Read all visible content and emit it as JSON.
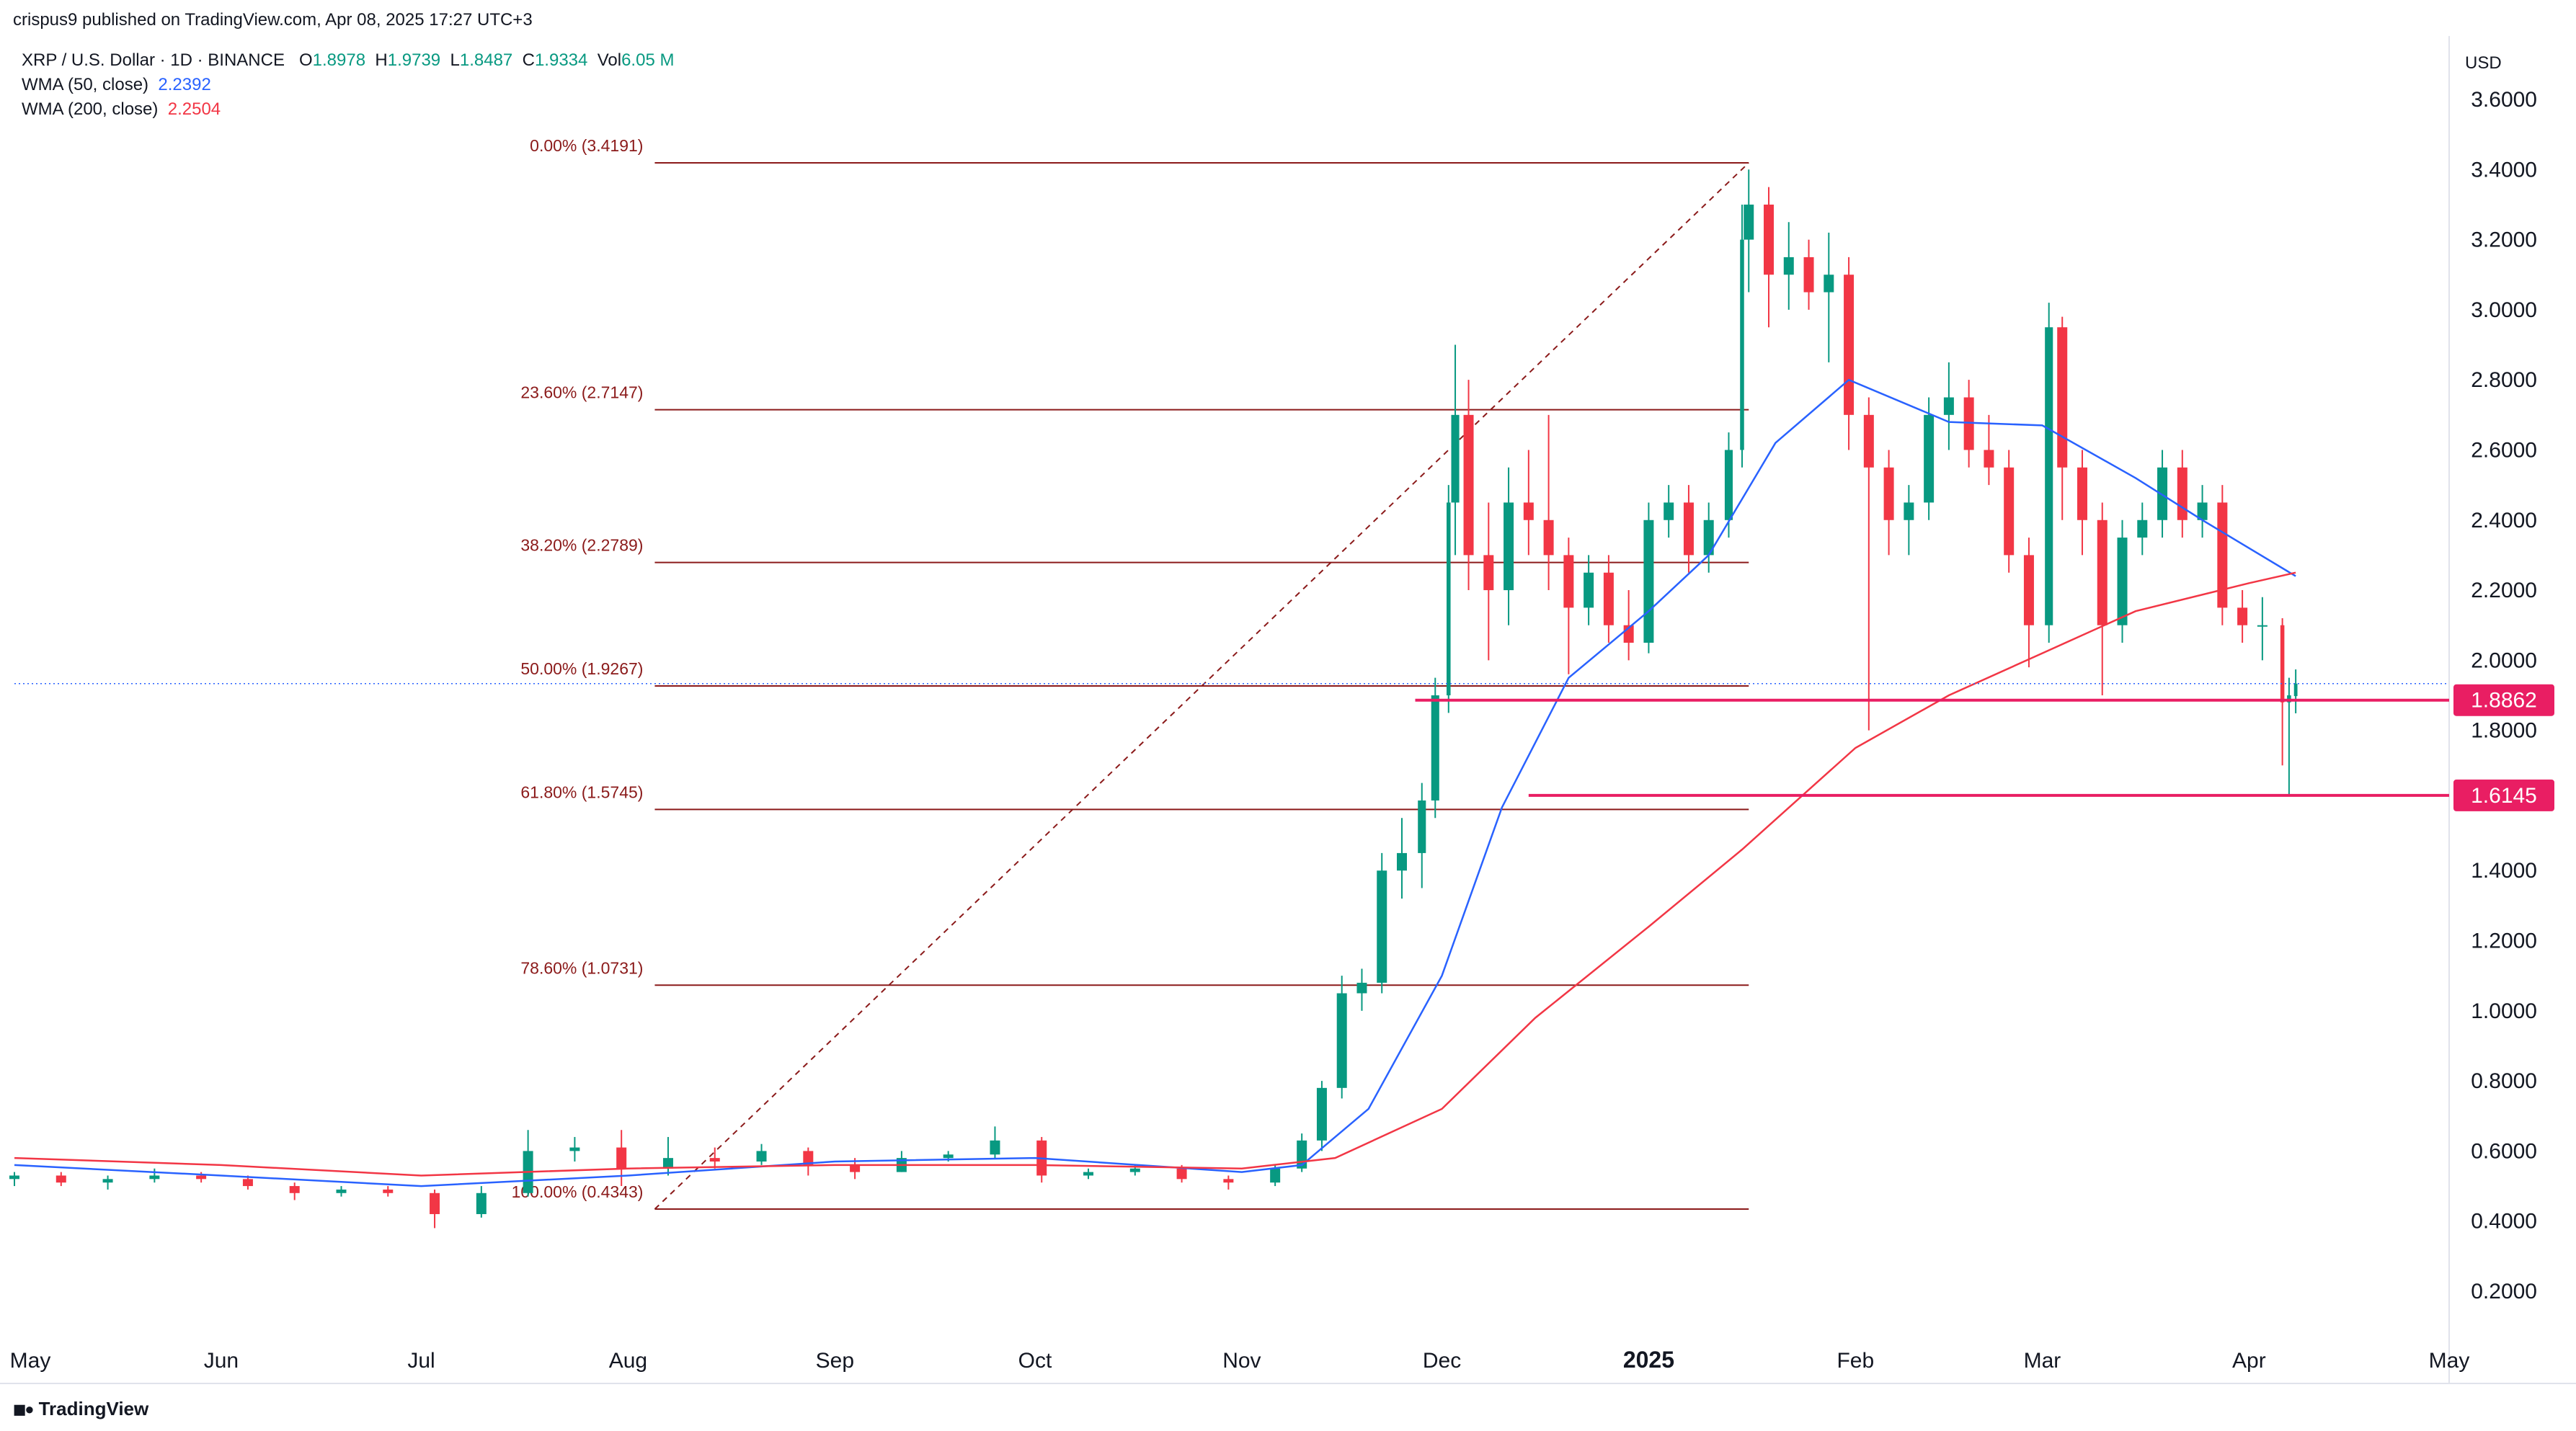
{
  "header": {
    "publisher": "crispus9 published on TradingView.com, Apr 08, 2025 17:27 UTC+3",
    "symbol": "XRP / U.S. Dollar · 1D · BINANCE",
    "ohlc": [
      {
        "key": "O",
        "value": "1.8978"
      },
      {
        "key": "H",
        "value": "1.9739"
      },
      {
        "key": "L",
        "value": "1.8487"
      },
      {
        "key": "C",
        "value": "1.9334"
      },
      {
        "key": "Vol",
        "value": "6.05 M"
      }
    ],
    "indicators": [
      {
        "label": "WMA (50, close)",
        "value": "2.2392",
        "color": "#2962ff"
      },
      {
        "label": "WMA (200, close)",
        "value": "2.2504",
        "color": "#f23645"
      }
    ]
  },
  "footer": {
    "logo_text": "TradingView",
    "logo_icon": "tradingview-logo-icon"
  },
  "colors": {
    "up": "#089981",
    "down": "#f23645",
    "wma50": "#2962ff",
    "wma200": "#f23645",
    "fib": "#8b1a1a",
    "level": "#e91e63",
    "grid": "#f0f3fa"
  },
  "chart_data": {
    "type": "candlestick",
    "y_axis_label": "USD",
    "y_ticks": [
      "3.6000",
      "3.4000",
      "3.2000",
      "3.0000",
      "2.8000",
      "2.6000",
      "2.4000",
      "2.2000",
      "2.0000",
      "1.8000",
      "1.4000",
      "1.2000",
      "1.0000",
      "0.8000",
      "0.6000",
      "0.4000",
      "0.2000"
    ],
    "ylim": [
      0.08,
      3.72
    ],
    "x_ticks": [
      "May",
      "Jun",
      "Jul",
      "Aug",
      "Sep",
      "Oct",
      "Nov",
      "Dec",
      "2025",
      "Feb",
      "Mar",
      "Apr",
      "May"
    ],
    "x_range": [
      "2024-05-01",
      "2025-05-01"
    ],
    "last_price": 1.9334,
    "fibonacci": {
      "from_date": "2024-08-05",
      "to_date": "2025-01-16",
      "levels": [
        {
          "label": "0.00% (3.4191)",
          "value": 3.4191
        },
        {
          "label": "23.60% (2.7147)",
          "value": 2.7147
        },
        {
          "label": "38.20% (2.2789)",
          "value": 2.2789
        },
        {
          "label": "50.00% (1.9267)",
          "value": 1.9267
        },
        {
          "label": "61.80% (1.5745)",
          "value": 1.5745
        },
        {
          "label": "78.60% (1.0731)",
          "value": 1.0731
        },
        {
          "label": "100.00% (0.4343)",
          "value": 0.4343
        }
      ]
    },
    "horizontal_levels": [
      {
        "label": "1.8862",
        "value": 1.8862,
        "from_date": "2024-11-27"
      },
      {
        "label": "1.6145",
        "value": 1.6145,
        "from_date": "2024-12-14"
      }
    ],
    "series": [
      {
        "name": "WMA (50, close)",
        "points": [
          [
            "2024-05-01",
            0.56
          ],
          [
            "2024-06-01",
            0.53
          ],
          [
            "2024-07-01",
            0.5
          ],
          [
            "2024-08-01",
            0.53
          ],
          [
            "2024-09-01",
            0.57
          ],
          [
            "2024-10-01",
            0.58
          ],
          [
            "2024-11-01",
            0.54
          ],
          [
            "2024-11-10",
            0.56
          ],
          [
            "2024-11-20",
            0.72
          ],
          [
            "2024-12-01",
            1.1
          ],
          [
            "2024-12-10",
            1.58
          ],
          [
            "2024-12-20",
            1.95
          ],
          [
            "2025-01-01",
            2.14
          ],
          [
            "2025-01-10",
            2.3
          ],
          [
            "2025-01-20",
            2.62
          ],
          [
            "2025-01-31",
            2.8
          ],
          [
            "2025-02-15",
            2.68
          ],
          [
            "2025-03-01",
            2.67
          ],
          [
            "2025-03-15",
            2.52
          ],
          [
            "2025-03-25",
            2.4
          ],
          [
            "2025-04-08",
            2.24
          ]
        ]
      },
      {
        "name": "WMA (200, close)",
        "points": [
          [
            "2024-05-01",
            0.58
          ],
          [
            "2024-06-01",
            0.56
          ],
          [
            "2024-07-01",
            0.53
          ],
          [
            "2024-08-01",
            0.55
          ],
          [
            "2024-09-01",
            0.56
          ],
          [
            "2024-10-01",
            0.56
          ],
          [
            "2024-11-01",
            0.55
          ],
          [
            "2024-11-15",
            0.58
          ],
          [
            "2024-12-01",
            0.72
          ],
          [
            "2024-12-15",
            0.98
          ],
          [
            "2025-01-01",
            1.24
          ],
          [
            "2025-01-15",
            1.46
          ],
          [
            "2025-02-01",
            1.75
          ],
          [
            "2025-02-15",
            1.9
          ],
          [
            "2025-03-01",
            2.02
          ],
          [
            "2025-03-15",
            2.14
          ],
          [
            "2025-04-01",
            2.22
          ],
          [
            "2025-04-08",
            2.25
          ]
        ]
      }
    ],
    "candles_weekly": [
      [
        "2024-05-01",
        0.52,
        0.54,
        0.5,
        0.53
      ],
      [
        "2024-05-08",
        0.53,
        0.54,
        0.5,
        0.51
      ],
      [
        "2024-05-15",
        0.51,
        0.53,
        0.49,
        0.52
      ],
      [
        "2024-05-22",
        0.52,
        0.55,
        0.51,
        0.53
      ],
      [
        "2024-05-29",
        0.53,
        0.54,
        0.51,
        0.52
      ],
      [
        "2024-06-05",
        0.52,
        0.53,
        0.49,
        0.5
      ],
      [
        "2024-06-12",
        0.5,
        0.51,
        0.46,
        0.48
      ],
      [
        "2024-06-19",
        0.48,
        0.5,
        0.47,
        0.49
      ],
      [
        "2024-06-26",
        0.49,
        0.5,
        0.47,
        0.48
      ],
      [
        "2024-07-03",
        0.48,
        0.49,
        0.38,
        0.42
      ],
      [
        "2024-07-10",
        0.42,
        0.5,
        0.41,
        0.48
      ],
      [
        "2024-07-17",
        0.48,
        0.66,
        0.47,
        0.6
      ],
      [
        "2024-07-24",
        0.6,
        0.64,
        0.57,
        0.61
      ],
      [
        "2024-07-31",
        0.61,
        0.66,
        0.5,
        0.55
      ],
      [
        "2024-08-07",
        0.55,
        0.64,
        0.53,
        0.58
      ],
      [
        "2024-08-14",
        0.58,
        0.61,
        0.55,
        0.57
      ],
      [
        "2024-08-21",
        0.57,
        0.62,
        0.56,
        0.6
      ],
      [
        "2024-08-28",
        0.6,
        0.61,
        0.53,
        0.56
      ],
      [
        "2024-09-04",
        0.56,
        0.58,
        0.52,
        0.54
      ],
      [
        "2024-09-11",
        0.54,
        0.6,
        0.54,
        0.58
      ],
      [
        "2024-09-18",
        0.58,
        0.6,
        0.57,
        0.59
      ],
      [
        "2024-09-25",
        0.59,
        0.67,
        0.58,
        0.63
      ],
      [
        "2024-10-02",
        0.63,
        0.64,
        0.51,
        0.53
      ],
      [
        "2024-10-09",
        0.53,
        0.55,
        0.52,
        0.54
      ],
      [
        "2024-10-16",
        0.54,
        0.56,
        0.53,
        0.55
      ],
      [
        "2024-10-23",
        0.55,
        0.56,
        0.51,
        0.52
      ],
      [
        "2024-10-30",
        0.52,
        0.53,
        0.49,
        0.51
      ],
      [
        "2024-11-06",
        0.51,
        0.56,
        0.5,
        0.55
      ],
      [
        "2024-11-10",
        0.55,
        0.65,
        0.54,
        0.63
      ],
      [
        "2024-11-13",
        0.63,
        0.8,
        0.6,
        0.78
      ],
      [
        "2024-11-16",
        0.78,
        1.1,
        0.75,
        1.05
      ],
      [
        "2024-11-19",
        1.05,
        1.12,
        1.0,
        1.08
      ],
      [
        "2024-11-22",
        1.08,
        1.45,
        1.05,
        1.4
      ],
      [
        "2024-11-25",
        1.4,
        1.55,
        1.32,
        1.45
      ],
      [
        "2024-11-28",
        1.45,
        1.65,
        1.35,
        1.6
      ],
      [
        "2024-11-30",
        1.6,
        1.95,
        1.55,
        1.9
      ],
      [
        "2024-12-02",
        1.9,
        2.5,
        1.85,
        2.45
      ],
      [
        "2024-12-03",
        2.45,
        2.9,
        2.3,
        2.7
      ],
      [
        "2024-12-05",
        2.7,
        2.8,
        2.2,
        2.3
      ],
      [
        "2024-12-08",
        2.3,
        2.45,
        2.0,
        2.2
      ],
      [
        "2024-12-11",
        2.2,
        2.55,
        2.1,
        2.45
      ],
      [
        "2024-12-14",
        2.45,
        2.6,
        2.3,
        2.4
      ],
      [
        "2024-12-17",
        2.4,
        2.7,
        2.2,
        2.3
      ],
      [
        "2024-12-20",
        2.3,
        2.35,
        1.96,
        2.15
      ],
      [
        "2024-12-23",
        2.15,
        2.3,
        2.1,
        2.25
      ],
      [
        "2024-12-26",
        2.25,
        2.3,
        2.05,
        2.1
      ],
      [
        "2024-12-29",
        2.1,
        2.2,
        2.0,
        2.05
      ],
      [
        "2025-01-01",
        2.05,
        2.45,
        2.02,
        2.4
      ],
      [
        "2025-01-04",
        2.4,
        2.5,
        2.35,
        2.45
      ],
      [
        "2025-01-07",
        2.45,
        2.5,
        2.25,
        2.3
      ],
      [
        "2025-01-10",
        2.3,
        2.45,
        2.25,
        2.4
      ],
      [
        "2025-01-13",
        2.4,
        2.65,
        2.35,
        2.6
      ],
      [
        "2025-01-15",
        2.6,
        3.3,
        2.55,
        3.2
      ],
      [
        "2025-01-16",
        3.2,
        3.4,
        3.05,
        3.3
      ],
      [
        "2025-01-19",
        3.3,
        3.35,
        2.95,
        3.1
      ],
      [
        "2025-01-22",
        3.1,
        3.25,
        3.0,
        3.15
      ],
      [
        "2025-01-25",
        3.15,
        3.2,
        3.0,
        3.05
      ],
      [
        "2025-01-28",
        3.05,
        3.22,
        2.85,
        3.1
      ],
      [
        "2025-01-31",
        3.1,
        3.15,
        2.6,
        2.7
      ],
      [
        "2025-02-03",
        2.7,
        2.75,
        1.8,
        2.55
      ],
      [
        "2025-02-06",
        2.55,
        2.6,
        2.3,
        2.4
      ],
      [
        "2025-02-09",
        2.4,
        2.5,
        2.3,
        2.45
      ],
      [
        "2025-02-12",
        2.45,
        2.75,
        2.4,
        2.7
      ],
      [
        "2025-02-15",
        2.7,
        2.85,
        2.6,
        2.75
      ],
      [
        "2025-02-18",
        2.75,
        2.8,
        2.55,
        2.6
      ],
      [
        "2025-02-21",
        2.6,
        2.7,
        2.5,
        2.55
      ],
      [
        "2025-02-24",
        2.55,
        2.6,
        2.25,
        2.3
      ],
      [
        "2025-02-27",
        2.3,
        2.35,
        1.98,
        2.1
      ],
      [
        "2025-03-02",
        2.1,
        3.02,
        2.05,
        2.95
      ],
      [
        "2025-03-04",
        2.95,
        2.98,
        2.4,
        2.55
      ],
      [
        "2025-03-07",
        2.55,
        2.6,
        2.3,
        2.4
      ],
      [
        "2025-03-10",
        2.4,
        2.45,
        1.9,
        2.1
      ],
      [
        "2025-03-13",
        2.1,
        2.4,
        2.05,
        2.35
      ],
      [
        "2025-03-16",
        2.35,
        2.45,
        2.3,
        2.4
      ],
      [
        "2025-03-19",
        2.4,
        2.6,
        2.35,
        2.55
      ],
      [
        "2025-03-22",
        2.55,
        2.6,
        2.35,
        2.4
      ],
      [
        "2025-03-25",
        2.4,
        2.5,
        2.35,
        2.45
      ],
      [
        "2025-03-28",
        2.45,
        2.5,
        2.1,
        2.15
      ],
      [
        "2025-03-31",
        2.15,
        2.2,
        2.05,
        2.1
      ],
      [
        "2025-04-03",
        2.1,
        2.18,
        2.0,
        2.1
      ],
      [
        "2025-04-06",
        2.1,
        2.12,
        1.7,
        1.88
      ],
      [
        "2025-04-07",
        1.88,
        1.95,
        1.6145,
        1.9
      ],
      [
        "2025-04-08",
        1.8978,
        1.9739,
        1.8487,
        1.9334
      ]
    ]
  }
}
